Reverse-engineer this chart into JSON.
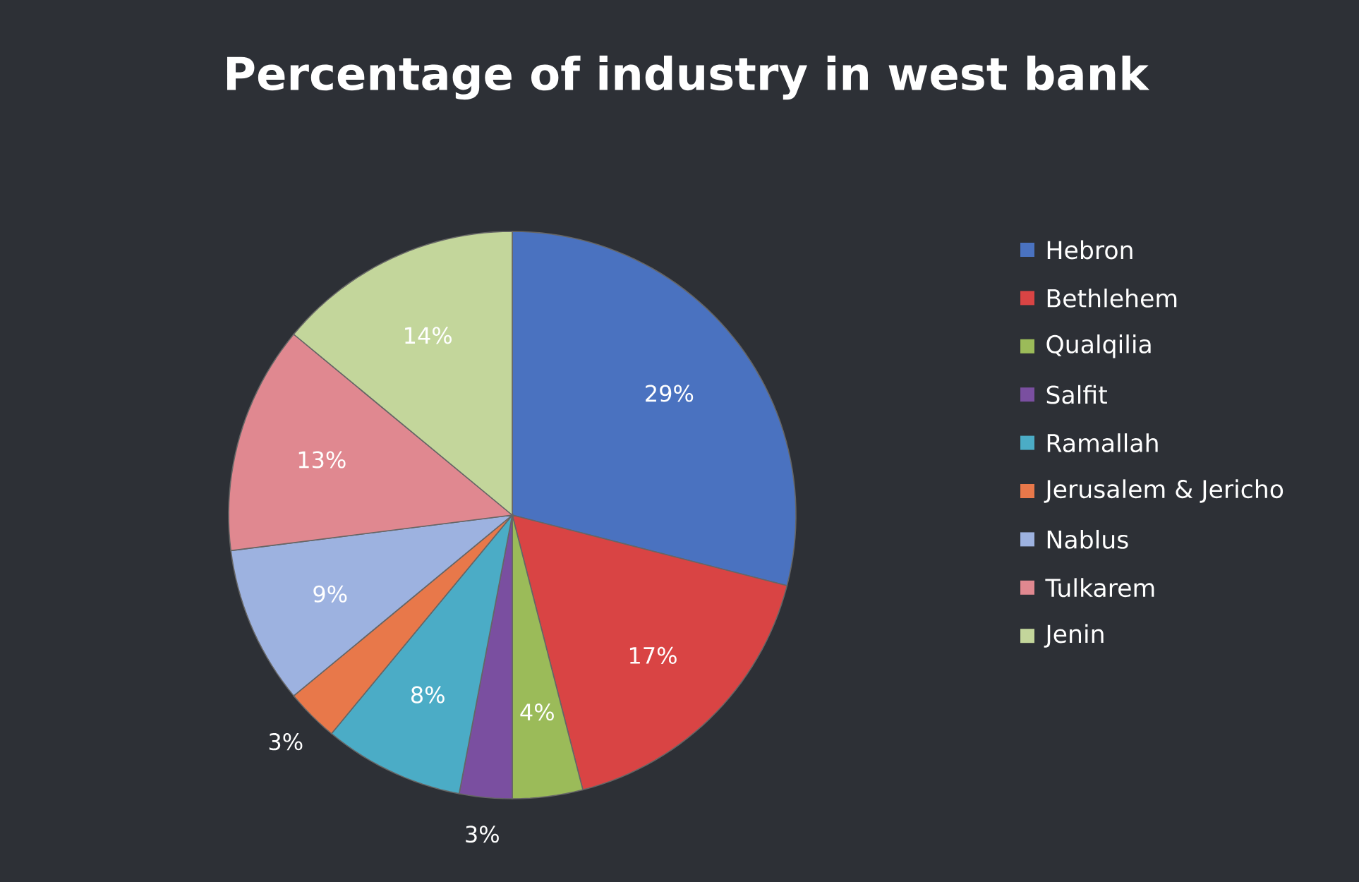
{
  "chart_data": {
    "type": "pie",
    "title": "Percentage of industry in west bank",
    "categories": [
      "Hebron",
      "Bethlehem",
      "Qualqilia",
      "Salfit",
      "Ramallah",
      "Jerusalem & Jericho",
      "Nablus",
      "Tulkarem",
      "Jenin"
    ],
    "values": [
      29,
      17,
      4,
      3,
      8,
      3,
      9,
      13,
      14
    ],
    "value_labels": [
      "29%",
      "17%",
      "4%",
      "3%",
      "8%",
      "3%",
      "9%",
      "13%",
      "14%"
    ],
    "colors": [
      "#4a72c0",
      "#d94444",
      "#9bbb59",
      "#7a4fa0",
      "#4bacc6",
      "#e8784a",
      "#9db2e0",
      "#e08890",
      "#c3d69b"
    ],
    "legend": "right"
  }
}
